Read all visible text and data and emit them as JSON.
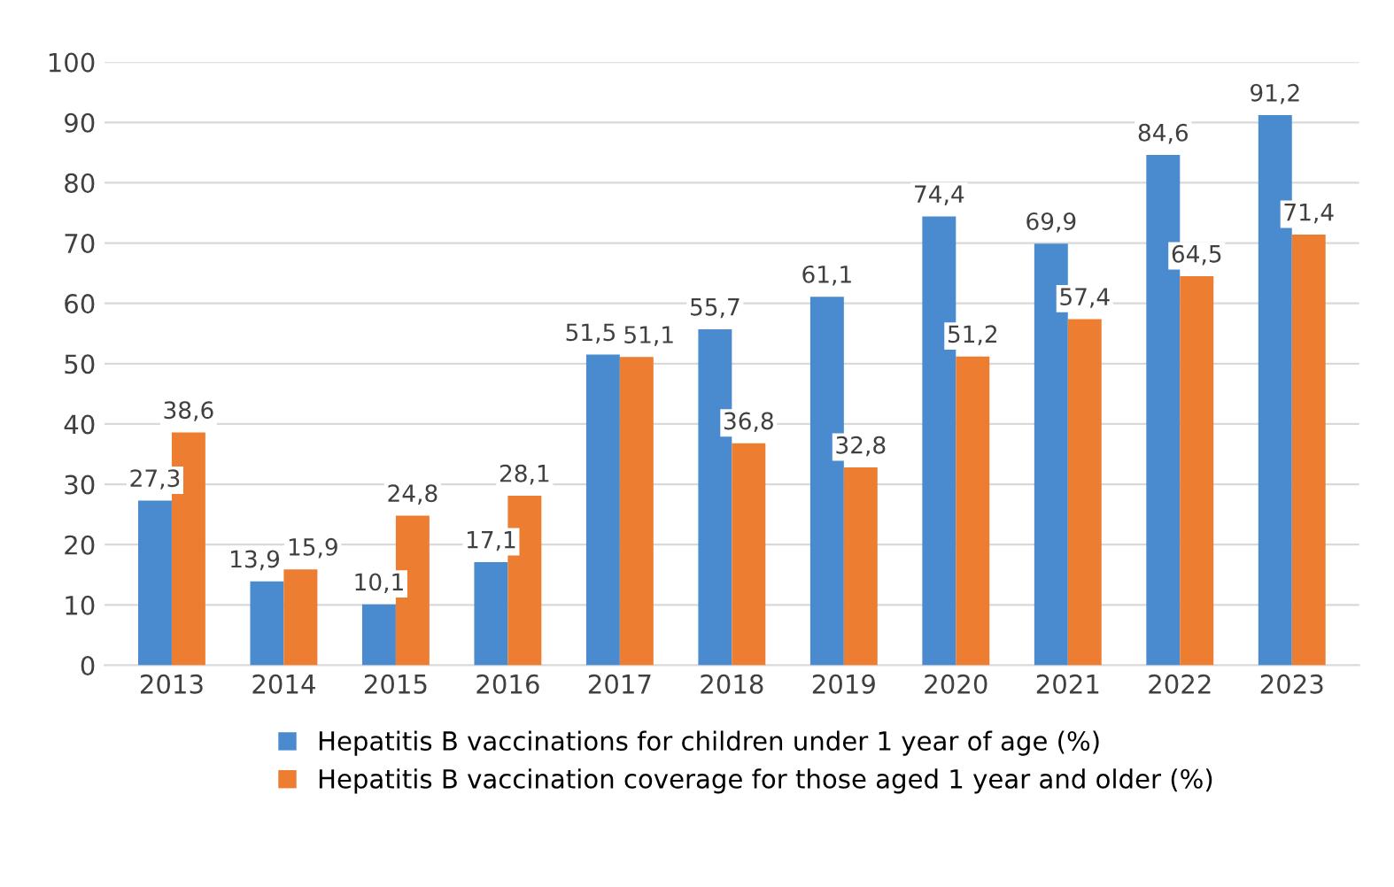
{
  "chart_data": {
    "type": "bar",
    "categories": [
      "2013",
      "2014",
      "2015",
      "2016",
      "2017",
      "2018",
      "2019",
      "2020",
      "2021",
      "2022",
      "2023"
    ],
    "series": [
      {
        "name": "Hepatitis B vaccinations for children under 1 year of age (%)",
        "color": "#4a8bd0",
        "values": [
          27.3,
          13.9,
          10.1,
          17.1,
          51.5,
          55.7,
          61.1,
          74.4,
          69.9,
          84.6,
          91.2
        ],
        "value_labels": [
          "27,3",
          "13,9",
          "10,1",
          "17,1",
          "51,5",
          "55,7",
          "61,1",
          "74,4",
          "69,9",
          "84,6",
          "91,2"
        ]
      },
      {
        "name": "Hepatitis B vaccination coverage for those aged 1 year and older (%)",
        "color": "#ed7d31",
        "values": [
          38.6,
          15.9,
          24.8,
          28.1,
          51.1,
          36.8,
          32.8,
          51.2,
          57.4,
          64.5,
          71.4
        ],
        "value_labels": [
          "38,6",
          "15,9",
          "24,8",
          "28,1",
          "51,1",
          "36,8",
          "32,8",
          "51,2",
          "57,4",
          "64,5",
          "71,4"
        ]
      }
    ],
    "ylim": [
      0,
      100
    ],
    "yticks": [
      0,
      10,
      20,
      30,
      40,
      50,
      60,
      70,
      80,
      90,
      100
    ],
    "grid": "y",
    "legend": "bottom"
  }
}
